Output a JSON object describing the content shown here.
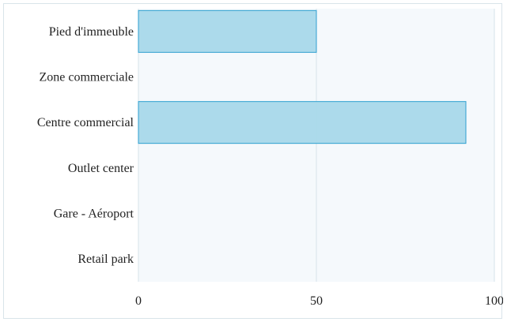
{
  "chart_data": {
    "type": "bar",
    "orientation": "horizontal",
    "categories": [
      "Pied d'immeuble",
      "Zone commerciale",
      "Centre commercial",
      "Outlet center",
      "Gare - Aéroport",
      "Retail park"
    ],
    "values": [
      50,
      0,
      92,
      0,
      0,
      0
    ],
    "xlim": [
      0,
      100
    ],
    "xticks": [
      "0",
      "50",
      "100"
    ],
    "title": "",
    "xlabel": "",
    "ylabel": "",
    "grid": true,
    "legend": "none",
    "colors": {
      "bar_fill": "#a8d8ea",
      "bar_stroke": "#2e9fd0",
      "plot_background": "#f5f9fc",
      "grid_line": "#d6e3ea",
      "frame_border": "#d9e4ea"
    }
  }
}
